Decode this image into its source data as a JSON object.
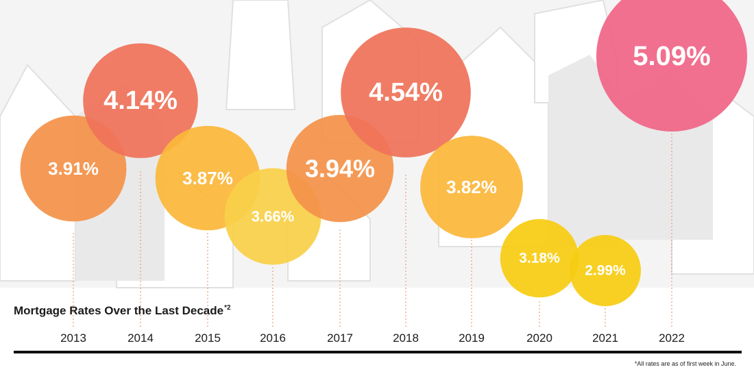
{
  "chart_data": {
    "type": "bubble",
    "title": "Mortgage Rates Over the Last Decade",
    "title_superscript": "*2",
    "categories": [
      "2013",
      "2014",
      "2015",
      "2016",
      "2017",
      "2018",
      "2019",
      "2020",
      "2021",
      "2022"
    ],
    "values": [
      3.91,
      4.14,
      3.87,
      3.66,
      3.94,
      4.54,
      3.82,
      3.18,
      2.99,
      5.09
    ],
    "labels": [
      "3.91%",
      "4.14%",
      "3.87%",
      "3.66%",
      "3.94%",
      "4.54%",
      "3.82%",
      "3.18%",
      "2.99%",
      "5.09%"
    ],
    "colors": [
      "#f39249",
      "#ef7259",
      "#fbb73a",
      "#f9d048",
      "#f39249",
      "#ef7259",
      "#fbb73a",
      "#f6cc12",
      "#f6cc12",
      "#f06587"
    ],
    "footnote": "*All rates are as of first week in June."
  }
}
